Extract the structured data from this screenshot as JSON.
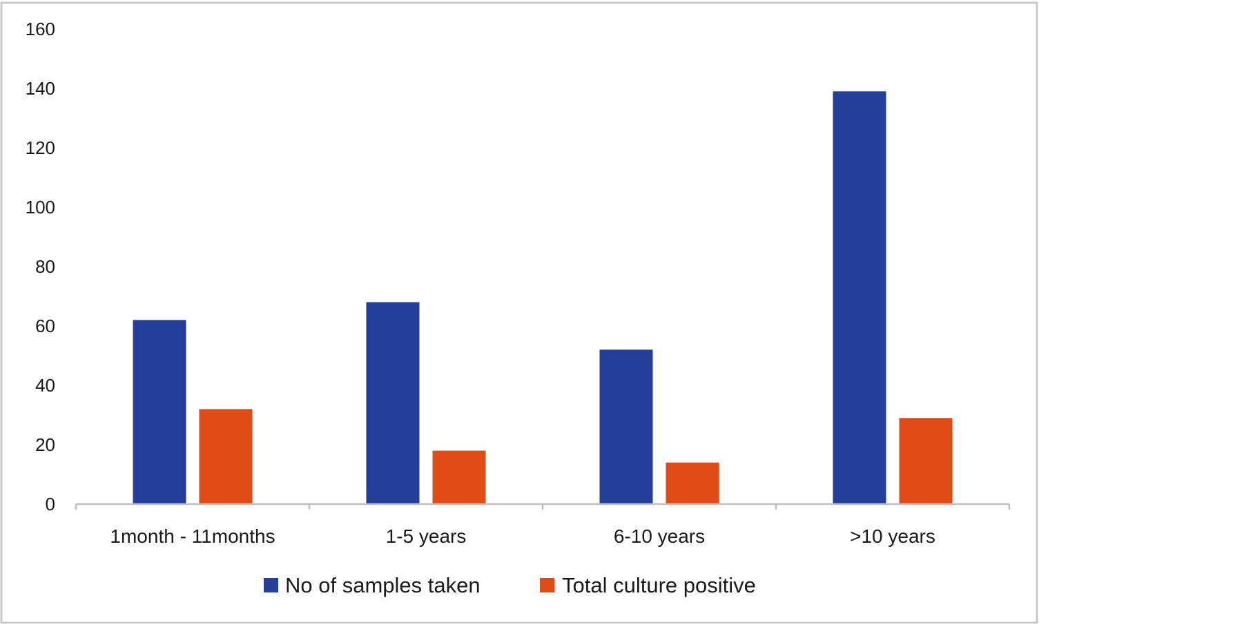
{
  "chart_data": {
    "type": "bar",
    "title": "",
    "xlabel": "",
    "ylabel": "",
    "categories": [
      "1month - 11months",
      "1-5 years",
      "6-10 years",
      ">10 years"
    ],
    "series": [
      {
        "name": "No of samples taken",
        "values": [
          62,
          68,
          52,
          139
        ],
        "color": "#233f99"
      },
      {
        "name": "Total culture positive",
        "values": [
          32,
          18,
          14,
          29
        ],
        "color": "#e04b16"
      }
    ],
    "ylim": [
      0,
      160
    ],
    "yticks": [
      "0",
      "20",
      "40",
      "60",
      "80",
      "100",
      "120",
      "140",
      "160"
    ],
    "grid": false,
    "legend_position": "bottom"
  }
}
